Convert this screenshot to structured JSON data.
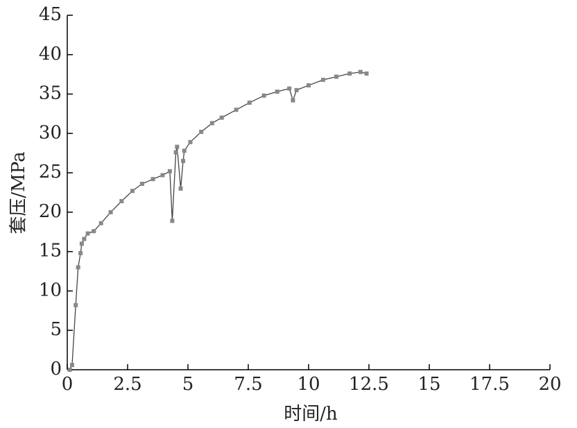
{
  "chart_data": {
    "type": "line",
    "x_label": "时间/h",
    "y_label": "套压/MPa",
    "x": [
      0.1,
      0.2,
      0.35,
      0.45,
      0.55,
      0.6,
      0.7,
      0.85,
      1.1,
      1.4,
      1.8,
      2.25,
      2.7,
      3.1,
      3.55,
      3.95,
      4.25,
      4.35,
      4.5,
      4.55,
      4.7,
      4.8,
      4.85,
      5.1,
      5.55,
      6,
      6.4,
      7,
      7.55,
      8.15,
      8.7,
      9.2,
      9.35,
      9.5,
      10,
      10.6,
      11.15,
      11.7,
      12.15,
      12.4
    ],
    "values": [
      0,
      0.6,
      8.2,
      13,
      14.8,
      16,
      16.6,
      17.3,
      17.6,
      18.6,
      20,
      21.4,
      22.7,
      23.6,
      24.2,
      24.7,
      25.2,
      18.9,
      27.6,
      28.3,
      23,
      26.5,
      27.8,
      28.9,
      30.2,
      31.3,
      32,
      33,
      33.9,
      34.8,
      35.3,
      35.7,
      34.2,
      35.5,
      36.1,
      36.8,
      37.2,
      37.6,
      37.8,
      37.6
    ],
    "color": "#888888",
    "line_color": "#444444",
    "xlim": [
      0,
      20
    ],
    "xticks": [
      0,
      2.5,
      5,
      7.5,
      10,
      12.5,
      15,
      17.5,
      20
    ],
    "ylim": [
      0,
      45
    ],
    "yticks": [
      0,
      5,
      10,
      15,
      20,
      25,
      30,
      35,
      40,
      45
    ]
  }
}
